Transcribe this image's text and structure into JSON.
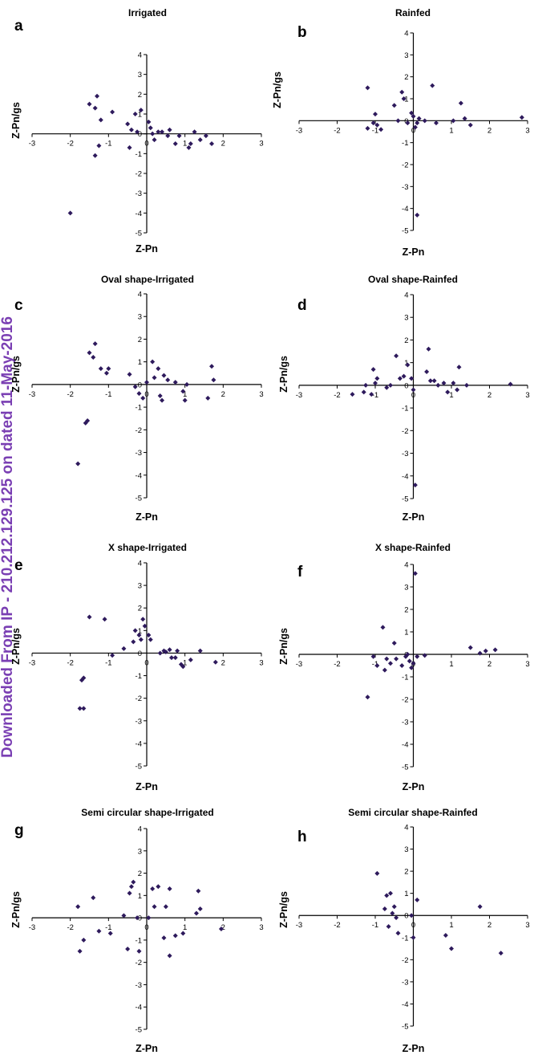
{
  "side_text": "Downloaded From IP - 210.212.129.125 on dated 11-May-2016",
  "style": {
    "marker_color": "#2e1a5c",
    "axis_color": "#000000",
    "side_text_color": "#7a3fb3"
  },
  "chart_data": [
    {
      "type": "scatter",
      "panel": "a",
      "title": "Irrigated",
      "xlabel": "Z-Pn",
      "ylabel": "Z-Pn/gs",
      "xlim": [
        -3,
        3
      ],
      "ylim": [
        -5,
        4
      ],
      "grid": false,
      "legend": "none",
      "x_ticks": [
        "-3",
        "-2",
        "-1",
        "0",
        "1",
        "2",
        "3"
      ],
      "y_ticks": [
        "4",
        "3",
        "2",
        "1",
        "0",
        "-1",
        "-2",
        "-3",
        "-4",
        "-5"
      ],
      "points": [
        [
          -2.0,
          -4.0
        ],
        [
          -1.5,
          1.5
        ],
        [
          -1.35,
          1.3
        ],
        [
          -1.3,
          1.9
        ],
        [
          -1.2,
          0.7
        ],
        [
          -1.35,
          -1.1
        ],
        [
          -1.25,
          -0.6
        ],
        [
          -0.9,
          1.1
        ],
        [
          -0.5,
          0.5
        ],
        [
          -0.4,
          0.2
        ],
        [
          -0.45,
          -0.7
        ],
        [
          -0.3,
          1.0
        ],
        [
          -0.25,
          0.1
        ],
        [
          -0.15,
          1.2
        ],
        [
          0.05,
          0.6
        ],
        [
          0.1,
          0.3
        ],
        [
          0.15,
          0.0
        ],
        [
          0.2,
          -0.3
        ],
        [
          0.3,
          0.1
        ],
        [
          0.4,
          0.1
        ],
        [
          0.55,
          -0.1
        ],
        [
          0.6,
          0.2
        ],
        [
          0.75,
          -0.5
        ],
        [
          0.85,
          -0.1
        ],
        [
          1.1,
          -0.7
        ],
        [
          1.15,
          -0.5
        ],
        [
          1.25,
          0.1
        ],
        [
          1.4,
          -0.3
        ],
        [
          1.55,
          -0.1
        ],
        [
          1.7,
          -0.5
        ]
      ]
    },
    {
      "type": "scatter",
      "panel": "b",
      "title": "Rainfed",
      "xlabel": "Z-Pn",
      "ylabel": "Z-Pn/gs",
      "xlim": [
        -3,
        3
      ],
      "ylim": [
        -5,
        4
      ],
      "grid": false,
      "legend": "none",
      "x_ticks": [
        "-3",
        "-2",
        "-1",
        "0",
        "1",
        "2",
        "3"
      ],
      "y_ticks": [
        "4",
        "3",
        "2",
        "1",
        "0",
        "-1",
        "-2",
        "-3",
        "-4",
        "-5"
      ],
      "points": [
        [
          -1.2,
          1.5
        ],
        [
          -1.2,
          -0.35
        ],
        [
          -1.05,
          -0.1
        ],
        [
          -1.0,
          0.3
        ],
        [
          -0.95,
          -0.2
        ],
        [
          -0.85,
          -0.4
        ],
        [
          -0.5,
          0.7
        ],
        [
          -0.4,
          0.0
        ],
        [
          -0.3,
          1.3
        ],
        [
          -0.25,
          1.0
        ],
        [
          -0.15,
          -0.1
        ],
        [
          -0.05,
          0.35
        ],
        [
          0.0,
          0.2
        ],
        [
          0.05,
          -0.3
        ],
        [
          0.1,
          -0.1
        ],
        [
          0.15,
          0.1
        ],
        [
          0.3,
          0.0
        ],
        [
          0.5,
          1.6
        ],
        [
          0.6,
          -0.1
        ],
        [
          1.05,
          0.0
        ],
        [
          1.25,
          0.8
        ],
        [
          1.35,
          0.1
        ],
        [
          1.5,
          -0.2
        ],
        [
          2.85,
          0.15
        ],
        [
          0.1,
          -4.3
        ]
      ]
    },
    {
      "type": "scatter",
      "panel": "c",
      "title": "Oval shape-Irrigated",
      "xlabel": "Z-Pn",
      "ylabel": "Z-Pn/gs",
      "xlim": [
        -3,
        3
      ],
      "ylim": [
        -5,
        4
      ],
      "grid": false,
      "legend": "none",
      "x_ticks": [
        "-3",
        "-2",
        "-1",
        "0",
        "1",
        "2",
        "3"
      ],
      "y_ticks": [
        "4",
        "3",
        "2",
        "1",
        "0",
        "-1",
        "-2",
        "-3",
        "-4",
        "-5"
      ],
      "points": [
        [
          -1.8,
          -3.5
        ],
        [
          -1.6,
          -1.7
        ],
        [
          -1.55,
          -1.6
        ],
        [
          -1.5,
          1.4
        ],
        [
          -1.4,
          1.2
        ],
        [
          -1.35,
          1.8
        ],
        [
          -1.2,
          0.7
        ],
        [
          -1.05,
          0.5
        ],
        [
          -1.0,
          0.7
        ],
        [
          -0.45,
          0.45
        ],
        [
          -0.3,
          -0.1
        ],
        [
          -0.2,
          -0.4
        ],
        [
          -0.1,
          -0.6
        ],
        [
          0.0,
          0.1
        ],
        [
          0.15,
          1.0
        ],
        [
          0.2,
          0.3
        ],
        [
          0.3,
          0.7
        ],
        [
          0.35,
          -0.5
        ],
        [
          0.4,
          -0.7
        ],
        [
          0.45,
          0.4
        ],
        [
          0.55,
          0.2
        ],
        [
          0.75,
          0.1
        ],
        [
          0.95,
          -0.3
        ],
        [
          1.0,
          -0.7
        ],
        [
          1.05,
          0.0
        ],
        [
          1.6,
          -0.6
        ],
        [
          1.7,
          0.8
        ],
        [
          1.75,
          0.2
        ]
      ]
    },
    {
      "type": "scatter",
      "panel": "d",
      "title": "Oval shape-Rainfed",
      "xlabel": "Z-Pn",
      "ylabel": "Z-Pn/gs",
      "xlim": [
        -3,
        3
      ],
      "ylim": [
        -5,
        4
      ],
      "grid": false,
      "legend": "none",
      "x_ticks": [
        "-3",
        "-2",
        "-1",
        "0",
        "1",
        "2",
        "3"
      ],
      "y_ticks": [
        "4",
        "3",
        "2",
        "1",
        "0",
        "-1",
        "-2",
        "-3",
        "-4",
        "-5"
      ],
      "points": [
        [
          -1.6,
          -0.4
        ],
        [
          -1.3,
          -0.3
        ],
        [
          -1.25,
          0.0
        ],
        [
          -1.1,
          -0.4
        ],
        [
          -1.05,
          0.7
        ],
        [
          -1.0,
          0.1
        ],
        [
          -0.95,
          0.3
        ],
        [
          -0.7,
          -0.1
        ],
        [
          -0.6,
          0.0
        ],
        [
          -0.45,
          1.3
        ],
        [
          -0.35,
          0.3
        ],
        [
          -0.25,
          0.4
        ],
        [
          -0.15,
          0.9
        ],
        [
          -0.05,
          0.3
        ],
        [
          0.0,
          -0.2
        ],
        [
          0.35,
          0.6
        ],
        [
          0.4,
          1.6
        ],
        [
          0.45,
          0.2
        ],
        [
          0.55,
          0.2
        ],
        [
          0.65,
          0.0
        ],
        [
          0.8,
          0.1
        ],
        [
          0.9,
          -0.3
        ],
        [
          1.05,
          0.1
        ],
        [
          1.15,
          -0.2
        ],
        [
          1.2,
          0.8
        ],
        [
          1.4,
          0.0
        ],
        [
          2.55,
          0.05
        ],
        [
          0.05,
          -4.4
        ]
      ]
    },
    {
      "type": "scatter",
      "panel": "e",
      "title": "X shape-Irrigated",
      "xlabel": "Z-Pn",
      "ylabel": "Z-Pn/gs",
      "xlim": [
        -3,
        3
      ],
      "ylim": [
        -5,
        4
      ],
      "grid": false,
      "legend": "none",
      "x_ticks": [
        "-3",
        "-2",
        "-1",
        "0",
        "1",
        "2",
        "3"
      ],
      "y_ticks": [
        "4",
        "3",
        "2",
        "1",
        "0",
        "-1",
        "-2",
        "-3",
        "-4",
        "-5"
      ],
      "points": [
        [
          -1.75,
          -2.45
        ],
        [
          -1.65,
          -2.45
        ],
        [
          -1.7,
          -1.2
        ],
        [
          -1.65,
          -1.1
        ],
        [
          -1.5,
          1.6
        ],
        [
          -1.1,
          1.5
        ],
        [
          -0.9,
          -0.1
        ],
        [
          -0.6,
          0.2
        ],
        [
          -0.35,
          0.5
        ],
        [
          -0.3,
          1.0
        ],
        [
          -0.2,
          0.8
        ],
        [
          -0.15,
          0.6
        ],
        [
          -0.1,
          1.5
        ],
        [
          -0.05,
          1.2
        ],
        [
          0.05,
          0.8
        ],
        [
          0.1,
          0.6
        ],
        [
          0.35,
          0.0
        ],
        [
          0.45,
          0.1
        ],
        [
          0.5,
          0.05
        ],
        [
          0.6,
          0.15
        ],
        [
          0.65,
          -0.2
        ],
        [
          0.75,
          -0.2
        ],
        [
          0.8,
          0.1
        ],
        [
          0.9,
          -0.5
        ],
        [
          0.95,
          -0.6
        ],
        [
          1.15,
          -0.3
        ],
        [
          1.4,
          0.1
        ],
        [
          1.8,
          -0.4
        ]
      ]
    },
    {
      "type": "scatter",
      "panel": "f",
      "title": "X shape-Rainfed",
      "xlabel": "Z-Pn",
      "ylabel": "Z-Pn/gs",
      "xlim": [
        -3,
        3
      ],
      "ylim": [
        -5,
        4
      ],
      "grid": false,
      "legend": "none",
      "x_ticks": [
        "-3",
        "-2",
        "-1",
        "0",
        "1",
        "2",
        "3"
      ],
      "y_ticks": [
        "4",
        "3",
        "2",
        "1",
        "0",
        "-1",
        "-2",
        "-3",
        "-4",
        "-5"
      ],
      "points": [
        [
          -1.2,
          -1.9
        ],
        [
          -1.05,
          -0.1
        ],
        [
          -0.95,
          -0.5
        ],
        [
          -0.8,
          1.2
        ],
        [
          -0.75,
          -0.7
        ],
        [
          -0.7,
          -0.2
        ],
        [
          -0.6,
          -0.4
        ],
        [
          -0.5,
          0.5
        ],
        [
          -0.45,
          -0.2
        ],
        [
          -0.3,
          -0.5
        ],
        [
          -0.2,
          -0.1
        ],
        [
          -0.15,
          0.0
        ],
        [
          -0.1,
          -0.3
        ],
        [
          -0.05,
          -0.6
        ],
        [
          0.0,
          -0.4
        ],
        [
          0.05,
          3.6
        ],
        [
          0.1,
          -0.1
        ],
        [
          0.3,
          -0.05
        ],
        [
          1.5,
          0.3
        ],
        [
          1.75,
          0.05
        ],
        [
          1.9,
          0.15
        ],
        [
          2.15,
          0.2
        ]
      ]
    },
    {
      "type": "scatter",
      "panel": "g",
      "title": "Semi circular shape-Irrigated",
      "xlabel": "Z-Pn",
      "ylabel": "Z-Pn/gs",
      "xlim": [
        -3,
        3
      ],
      "ylim": [
        -5,
        4
      ],
      "grid": false,
      "legend": "none",
      "x_ticks": [
        "-3",
        "-2",
        "-1",
        "0",
        "1",
        "2",
        "3"
      ],
      "y_ticks": [
        "4",
        "3",
        "2",
        "1",
        "0",
        "-1",
        "-2",
        "-3",
        "-4",
        "-5"
      ],
      "points": [
        [
          -1.8,
          0.5
        ],
        [
          -1.75,
          -1.5
        ],
        [
          -1.65,
          -1.0
        ],
        [
          -1.4,
          0.9
        ],
        [
          -1.25,
          -0.6
        ],
        [
          -0.95,
          -0.7
        ],
        [
          -0.6,
          0.1
        ],
        [
          -0.5,
          -1.4
        ],
        [
          -0.45,
          1.1
        ],
        [
          -0.4,
          1.4
        ],
        [
          -0.35,
          1.6
        ],
        [
          -0.25,
          0.0
        ],
        [
          -0.2,
          -1.5
        ],
        [
          0.05,
          0.0
        ],
        [
          0.15,
          1.3
        ],
        [
          0.2,
          0.5
        ],
        [
          0.3,
          1.4
        ],
        [
          0.45,
          -0.9
        ],
        [
          0.5,
          0.5
        ],
        [
          0.6,
          -1.7
        ],
        [
          0.6,
          1.3
        ],
        [
          0.75,
          -0.8
        ],
        [
          0.95,
          -0.7
        ],
        [
          1.3,
          0.2
        ],
        [
          1.35,
          1.2
        ],
        [
          1.4,
          0.4
        ],
        [
          1.95,
          -0.5
        ]
      ]
    },
    {
      "type": "scatter",
      "panel": "h",
      "title": "Semi circular shape-Rainfed",
      "xlabel": "Z-Pn",
      "ylabel": "Z-Pn/gs",
      "xlim": [
        -3,
        3
      ],
      "ylim": [
        -5,
        4
      ],
      "grid": false,
      "legend": "none",
      "x_ticks": [
        "-3",
        "-2",
        "-1",
        "0",
        "1",
        "2",
        "3"
      ],
      "y_ticks": [
        "4",
        "3",
        "2",
        "1",
        "0",
        "-1",
        "-2",
        "-3",
        "-4",
        "-5"
      ],
      "points": [
        [
          -0.95,
          1.9
        ],
        [
          -0.75,
          0.3
        ],
        [
          -0.7,
          0.9
        ],
        [
          -0.65,
          -0.5
        ],
        [
          -0.6,
          1.0
        ],
        [
          -0.55,
          0.1
        ],
        [
          -0.5,
          0.4
        ],
        [
          -0.45,
          -0.1
        ],
        [
          -0.4,
          -0.8
        ],
        [
          -0.05,
          0.0
        ],
        [
          0.0,
          -1.0
        ],
        [
          0.1,
          0.7
        ],
        [
          0.85,
          -0.9
        ],
        [
          1.0,
          -1.5
        ],
        [
          1.75,
          0.4
        ],
        [
          2.3,
          -1.7
        ]
      ]
    }
  ]
}
